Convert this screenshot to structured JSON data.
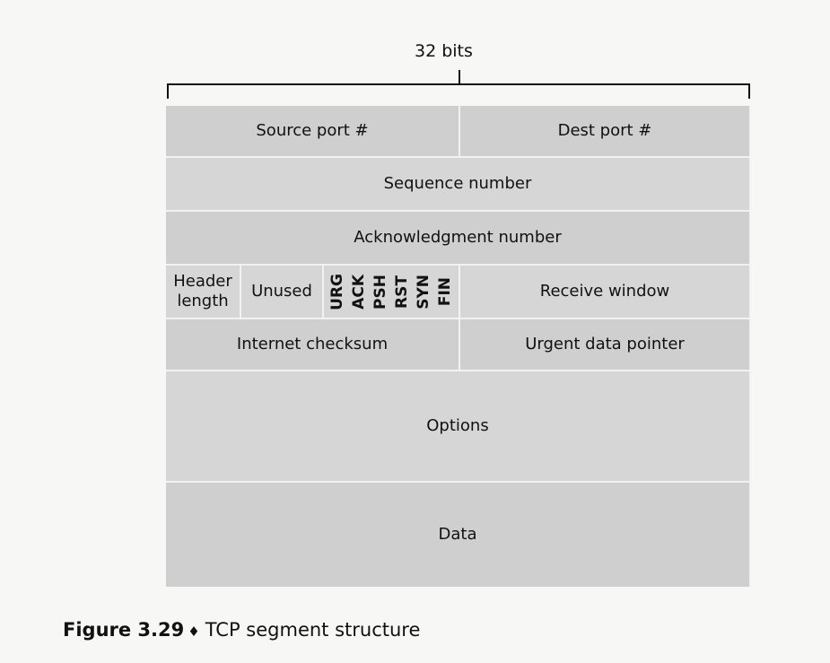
{
  "header": {
    "width_label": "32 bits"
  },
  "fields": {
    "source_port": "Source port #",
    "dest_port": "Dest port #",
    "sequence_number": "Sequence number",
    "ack_number": "Acknowledgment number",
    "header_length": "Header length",
    "unused": "Unused",
    "flags": [
      "URG",
      "ACK",
      "PSH",
      "RST",
      "SYN",
      "FIN"
    ],
    "receive_window": "Receive window",
    "internet_checksum": "Internet checksum",
    "urgent_pointer": "Urgent data pointer",
    "options": "Options",
    "data": "Data"
  },
  "caption": {
    "figure_number": "Figure 3.29",
    "symbol": "♦",
    "title": "TCP segment structure"
  },
  "colors": {
    "field_fill": "#cfcfcf",
    "divider": "#f2f2f2"
  }
}
